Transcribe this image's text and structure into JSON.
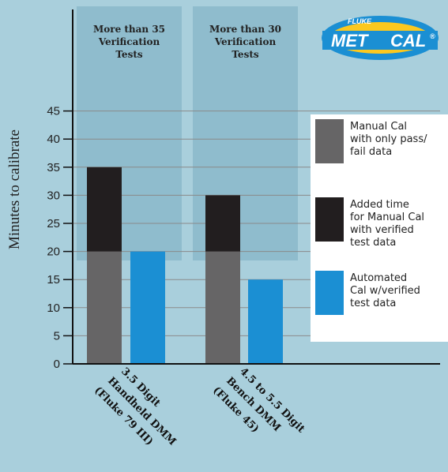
{
  "chart_data": {
    "type": "bar",
    "title": "",
    "ylabel": "Minutes to calibrate",
    "ylim": [
      0,
      45
    ],
    "y_ticks": [
      "0",
      "5",
      "10",
      "15",
      "20",
      "25",
      "30",
      "35",
      "40",
      "45"
    ],
    "grid": true,
    "legend_placement": "right",
    "categories": [
      "3.5 Digit Handheld DMM (Fluke 79 III)",
      "4.5 to 5.5 Digit Bench DMM (Fluke 45)"
    ],
    "category_lines": [
      [
        "3.5 Digit",
        "Handheld DMM",
        "(Fluke 79 III)"
      ],
      [
        "4.5 to 5.5 Digit",
        "Bench DMM",
        "(Fluke 45)"
      ]
    ],
    "group_headers": [
      [
        "More than 35",
        "Verification",
        "Tests"
      ],
      [
        "More than 30",
        "Verification",
        "Tests"
      ]
    ],
    "series": [
      {
        "key": "manual_pass_fail",
        "color": "#666566",
        "values": [
          20,
          20
        ],
        "legend_lines": [
          "Manual Cal",
          "with only pass/",
          "fail data"
        ]
      },
      {
        "key": "added_verified",
        "color": "#221e1f",
        "values": [
          15,
          10
        ],
        "legend_lines": [
          "Added time",
          "for Manual Cal",
          "with verified",
          "test data"
        ]
      },
      {
        "key": "automated",
        "color": "#1b8fd3",
        "values": [
          20,
          15
        ],
        "legend_lines": [
          "Automated",
          "Cal w/verified",
          "test data"
        ]
      }
    ],
    "colors": {
      "background": "#a9cfdc",
      "group_band": "#8fbccd",
      "legend_bg": "#ffffff"
    }
  },
  "logo": {
    "top": "FLUKE",
    "main_left": "MET",
    "main_right": "CAL",
    "mark": "®"
  }
}
